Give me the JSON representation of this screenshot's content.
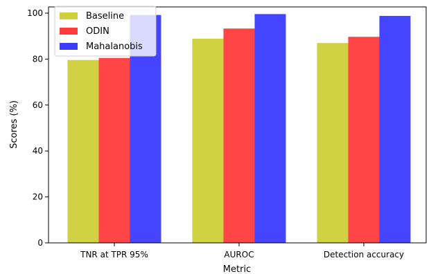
{
  "chart_data": {
    "type": "bar",
    "categories": [
      "TNR at TPR 95%",
      "AUROC",
      "Detection accuracy"
    ],
    "series": [
      {
        "name": "Baseline",
        "values": [
          79.6,
          88.9,
          87.0
        ],
        "color": "#cfcf3a"
      },
      {
        "name": "ODIN",
        "values": [
          80.5,
          93.3,
          89.7
        ],
        "color": "#ff3b3b"
      },
      {
        "name": "Mahalanobis",
        "values": [
          99.2,
          99.6,
          98.8
        ],
        "color": "#3b3bff"
      }
    ],
    "xlabel": "Metric",
    "ylabel": "Scores (%)",
    "ylim": [
      0,
      100
    ],
    "yticks": [
      0,
      20,
      40,
      60,
      80,
      100
    ],
    "grid": false,
    "legend_position": "top-left"
  }
}
